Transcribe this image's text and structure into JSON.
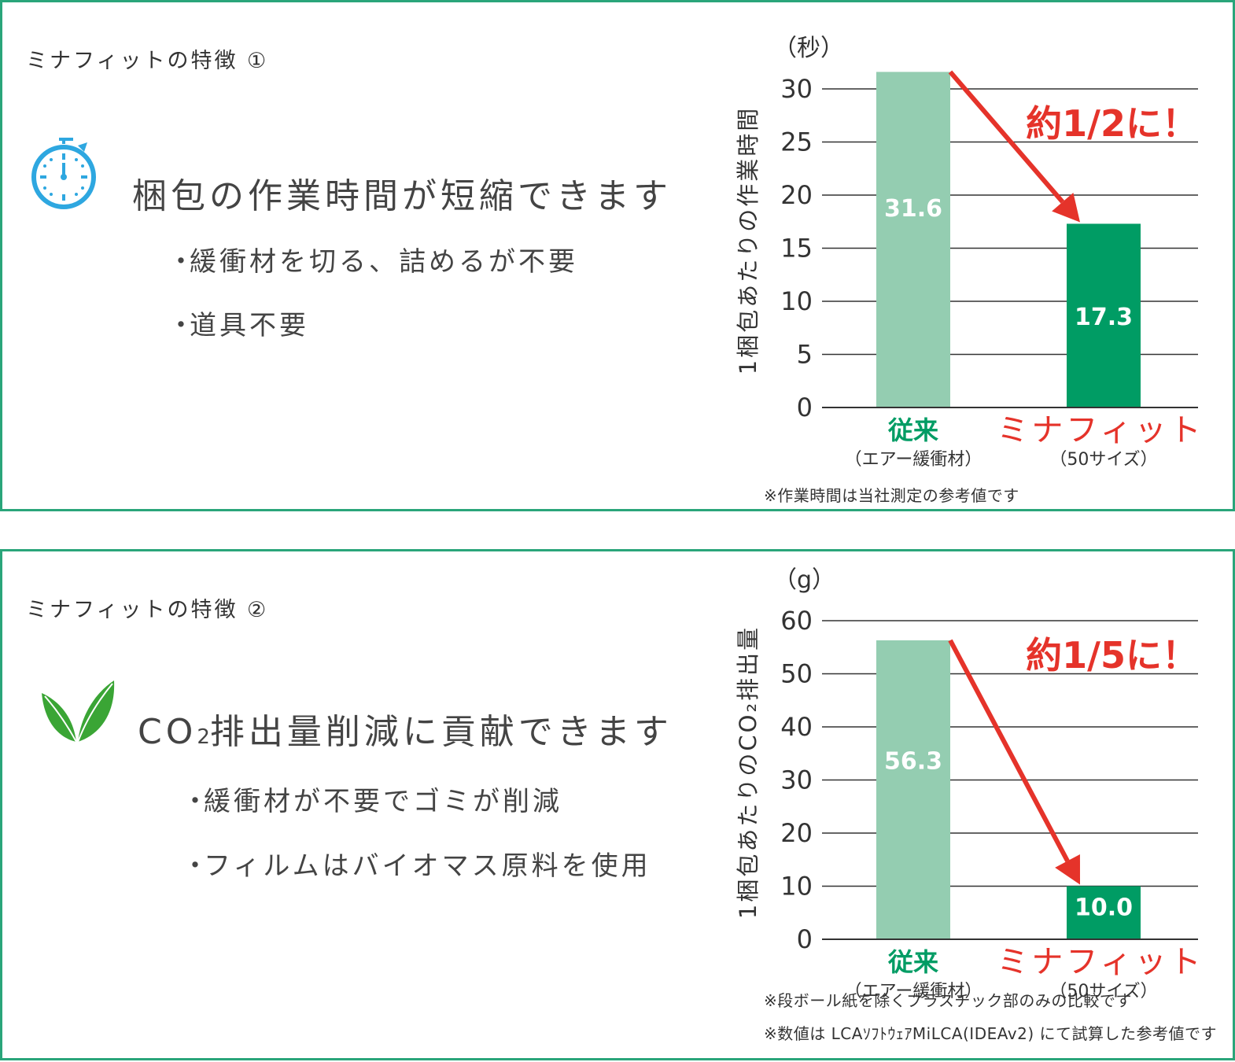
{
  "colors": {
    "border": "#2aa57a",
    "bar_conventional": "#94cdb1",
    "bar_minafit": "#009c64",
    "accent_red": "#e5332a",
    "green_text": "#009c64",
    "icon_blue": "#2ea7e0",
    "leaf_green": "#3aa535"
  },
  "panels": [
    {
      "feature_label": "ミナフィットの特徴 ①",
      "icon": "stopwatch-icon",
      "headline": "梱包の作業時間が短縮できます",
      "bullets": [
        "緩衝材を切る、詰めるが不要",
        "道具不要"
      ],
      "notes": [
        "※作業時間は当社測定の参考値です"
      ],
      "chart_data": {
        "type": "bar",
        "unit": "（秒）",
        "ylabel": "1梱包あたりの作業時間",
        "ylim": [
          0,
          30
        ],
        "yticks": [
          0,
          5,
          10,
          15,
          20,
          25,
          30
        ],
        "categories": [
          "従来",
          "ミナフィット"
        ],
        "category_sublabels": [
          "（エアー緩衝材）",
          "（50サイズ）"
        ],
        "values": [
          31.6,
          17.3
        ],
        "value_labels": [
          "31.6",
          "17.3"
        ],
        "annotation": "約1/2に！",
        "grid": true
      }
    },
    {
      "feature_label": "ミナフィットの特徴 ②",
      "icon": "leaf-icon",
      "headline_prefix": "CO",
      "headline_sub": "2",
      "headline_rest": "排出量削減に貢献できます",
      "bullets": [
        "緩衝材が不要でゴミが削減",
        "フィルムはバイオマス原料を使用"
      ],
      "notes": [
        "※段ボール紙を除くプラスチック部のみの比較です",
        "※数値は LCAｿﾌﾄｳｪｱMiLCA(IDEAv2) にて試算した参考値です"
      ],
      "chart_data": {
        "type": "bar",
        "unit": "（g）",
        "ylabel": "1梱包あたりのCO₂排出量",
        "ylim": [
          0,
          60
        ],
        "yticks": [
          0,
          10,
          20,
          30,
          40,
          50,
          60
        ],
        "categories": [
          "従来",
          "ミナフィット"
        ],
        "category_sublabels": [
          "（エアー緩衝材）",
          "（50サイズ）"
        ],
        "values": [
          56.3,
          10.0
        ],
        "value_labels": [
          "56.3",
          "10.0"
        ],
        "annotation": "約1/5に！",
        "grid": true
      }
    }
  ]
}
